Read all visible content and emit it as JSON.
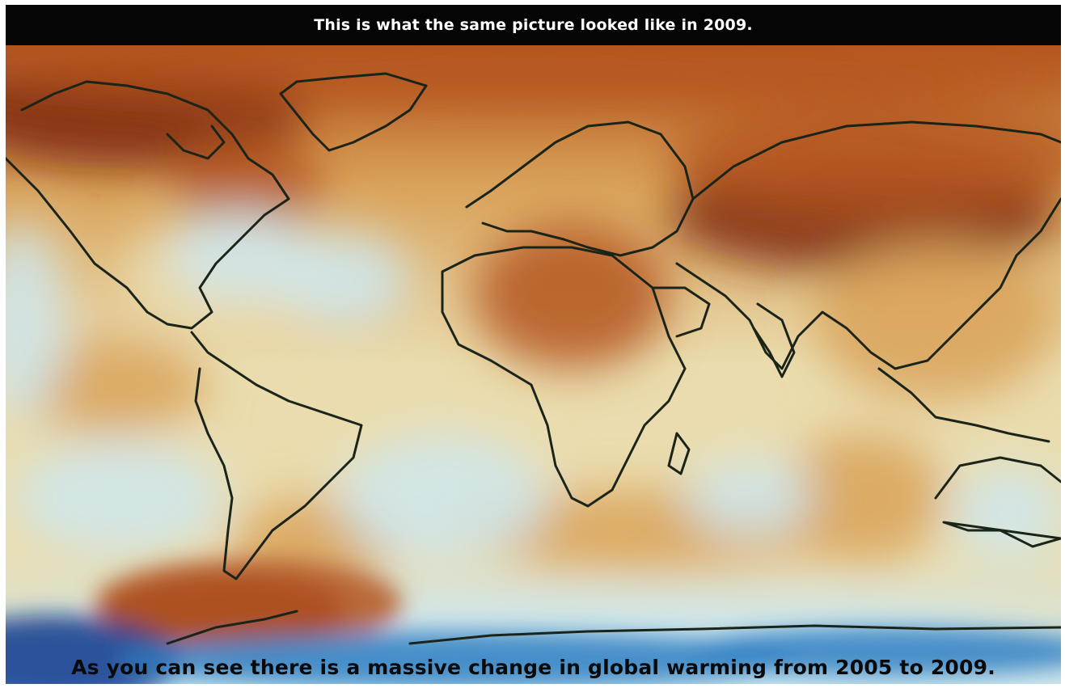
{
  "captions": {
    "top": "This is what the same picture looked like in 2009.",
    "bottom": "As you can see there is a massive change in global warming from 2005 to 2009."
  },
  "map": {
    "subject": "global temperature anomaly world map",
    "colors": {
      "warm_strong": "#7a2408",
      "warm": "#b5561e",
      "warm_mild": "#d9a25a",
      "neutral": "#eadcae",
      "cool": "#cfe8ef",
      "cold": "#2f7fc4",
      "cold_strong": "#0c3a8c",
      "coastline": "#1a2418",
      "caption_bar": "#050505"
    }
  }
}
